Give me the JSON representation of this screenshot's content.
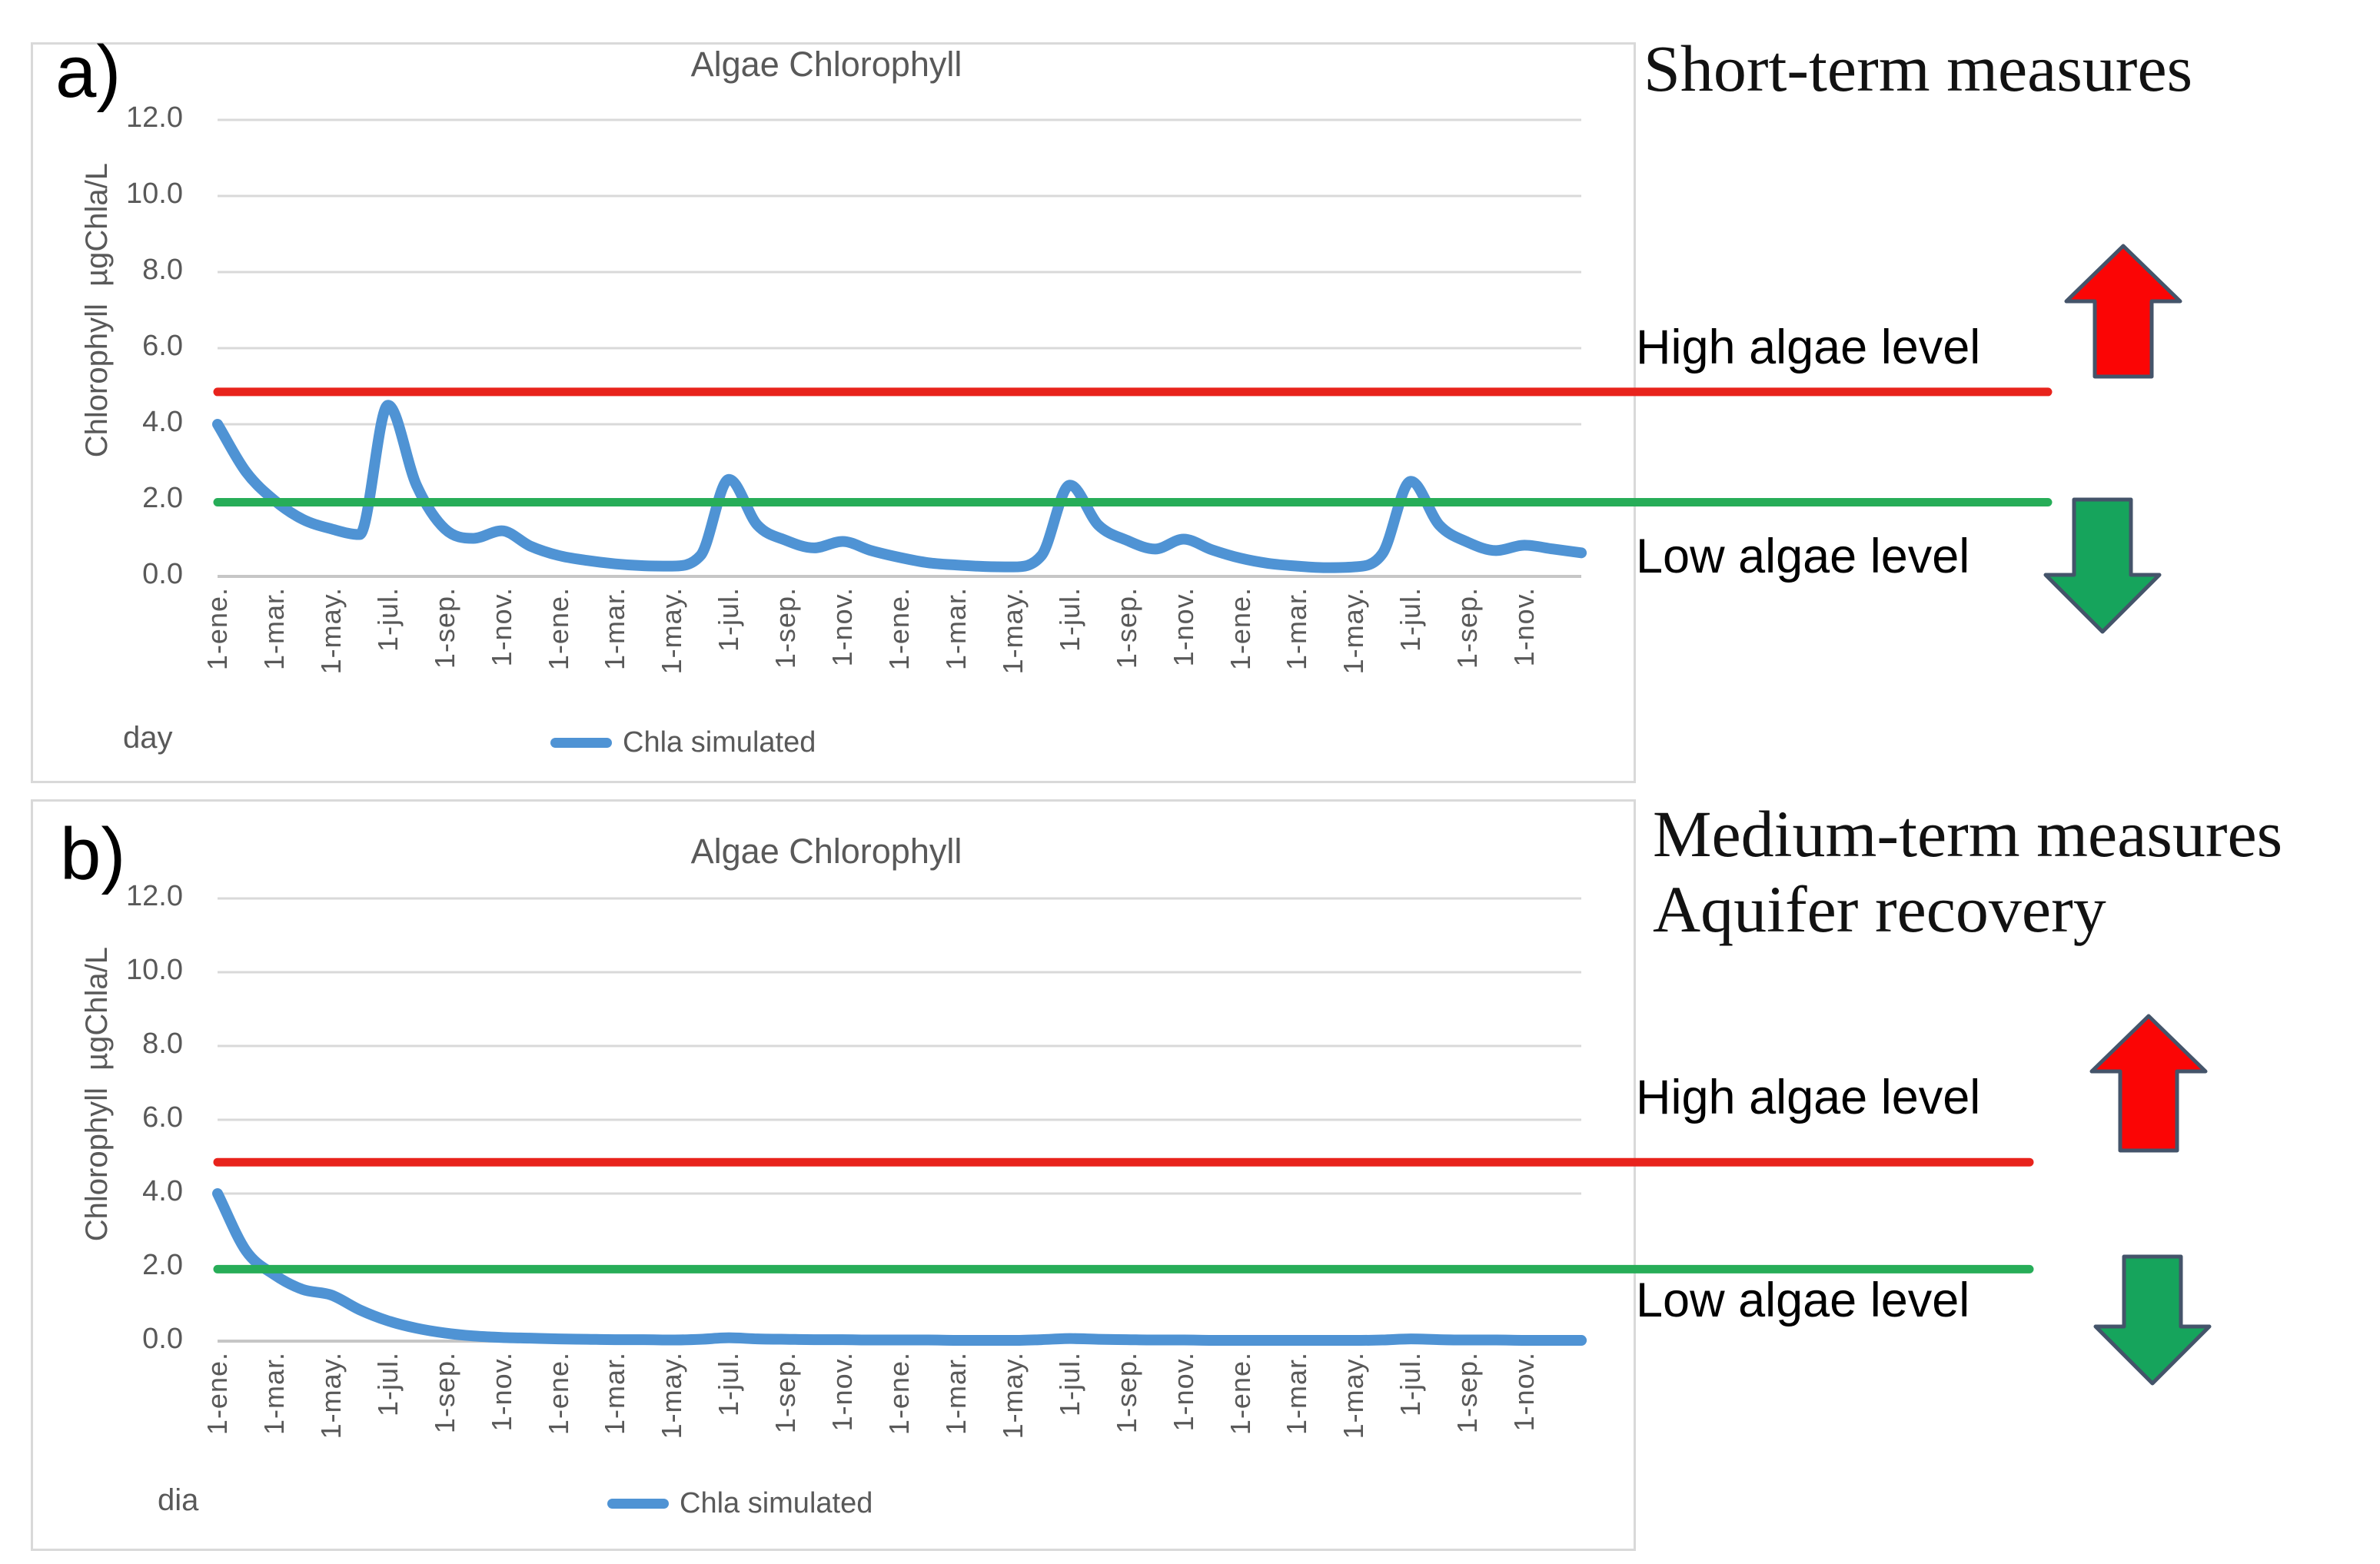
{
  "colors": {
    "grid_line": "#d9d9d9",
    "axis_line": "#c6c6c6",
    "chart_text": "#595959",
    "series_blue": "#4f93d4",
    "threshold_red": "#e8231c",
    "threshold_green": "#27ad58",
    "arrow_red_fill": "#fb0505",
    "arrow_green_fill": "#16a45c",
    "arrow_outline": "#44546a"
  },
  "panels": [
    {
      "letter": "a)",
      "headings": [
        "Short-term measures"
      ],
      "high_label": "High algae level",
      "low_label": "Low algae level"
    },
    {
      "letter": "b)",
      "headings": [
        "Medium-term measures",
        "Aquifer recovery"
      ],
      "high_label": "High algae level",
      "low_label": "Low algae level"
    }
  ],
  "chart_data": [
    {
      "type": "line",
      "title": "Algae Chlorophyll",
      "xlabel": "day",
      "ylabel": "Chlorophyll  µgChla/L",
      "ylim": [
        0,
        12
      ],
      "grid": true,
      "legend_position": "bottom",
      "ytick_labels": [
        "0.0",
        "2.0",
        "4.0",
        "6.0",
        "8.0",
        "10.0",
        "12.0"
      ],
      "x_tick_labels": [
        "1-ene.",
        "1-mar.",
        "1-may.",
        "1-jul.",
        "1-sep.",
        "1-nov.",
        "1-ene.",
        "1-mar.",
        "1-may.",
        "1-jul.",
        "1-sep.",
        "1-nov.",
        "1-ene.",
        "1-mar.",
        "1-may.",
        "1-jul.",
        "1-sep.",
        "1-nov.",
        "1-ene.",
        "1-mar.",
        "1-may.",
        "1-jul.",
        "1-sep.",
        "1-nov."
      ],
      "series": [
        {
          "name": "Chla simulated",
          "color": "#4f93d4",
          "cadence": "monthly over 4 years",
          "values": [
            4.0,
            2.75,
            2.0,
            1.5,
            1.25,
            1.1,
            4.5,
            2.4,
            1.25,
            1.0,
            1.2,
            0.8,
            0.55,
            0.42,
            0.33,
            0.28,
            0.27,
            0.55,
            2.55,
            1.35,
            0.95,
            0.75,
            0.92,
            0.68,
            0.5,
            0.36,
            0.3,
            0.26,
            0.25,
            0.55,
            2.4,
            1.35,
            0.95,
            0.72,
            0.98,
            0.7,
            0.48,
            0.34,
            0.27,
            0.23,
            0.25,
            0.6,
            2.5,
            1.35,
            0.9,
            0.68,
            0.82,
            0.72,
            0.62
          ]
        }
      ],
      "thresholds": [
        {
          "label": "High algae level",
          "value": 4.85,
          "color": "#e8231c"
        },
        {
          "label": "Low algae level",
          "value": 1.95,
          "color": "#27ad58"
        }
      ]
    },
    {
      "type": "line",
      "title": "Algae Chlorophyll",
      "xlabel": "dia",
      "ylabel": "Chlorophyll  µgChla/L",
      "ylim": [
        0,
        12
      ],
      "grid": true,
      "legend_position": "bottom",
      "ytick_labels": [
        "0.0",
        "2.0",
        "4.0",
        "6.0",
        "8.0",
        "10.0",
        "12.0"
      ],
      "x_tick_labels": [
        "1-ene.",
        "1-mar.",
        "1-may.",
        "1-jul.",
        "1-sep.",
        "1-nov.",
        "1-ene.",
        "1-mar.",
        "1-may.",
        "1-jul.",
        "1-sep.",
        "1-nov.",
        "1-ene.",
        "1-mar.",
        "1-may.",
        "1-jul.",
        "1-sep.",
        "1-nov.",
        "1-ene.",
        "1-mar.",
        "1-may.",
        "1-jul.",
        "1-sep.",
        "1-nov."
      ],
      "series": [
        {
          "name": "Chla simulated",
          "color": "#4f93d4",
          "cadence": "monthly over 4 years",
          "values": [
            4.0,
            2.45,
            1.8,
            1.4,
            1.25,
            0.85,
            0.55,
            0.35,
            0.22,
            0.14,
            0.1,
            0.08,
            0.06,
            0.05,
            0.04,
            0.04,
            0.03,
            0.05,
            0.09,
            0.06,
            0.05,
            0.04,
            0.04,
            0.03,
            0.03,
            0.03,
            0.02,
            0.02,
            0.02,
            0.04,
            0.07,
            0.05,
            0.04,
            0.03,
            0.03,
            0.02,
            0.02,
            0.02,
            0.02,
            0.02,
            0.02,
            0.03,
            0.06,
            0.04,
            0.03,
            0.03,
            0.02,
            0.02,
            0.02
          ]
        }
      ],
      "thresholds": [
        {
          "label": "High algae level",
          "value": 4.85,
          "color": "#e8231c"
        },
        {
          "label": "Low algae level",
          "value": 1.95,
          "color": "#27ad58"
        }
      ]
    }
  ]
}
